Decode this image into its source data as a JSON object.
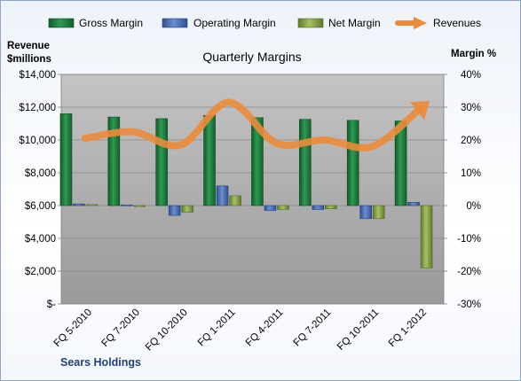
{
  "chart_data": {
    "type": "bar",
    "title": "Quarterly Margins",
    "footer": "Sears Holdings",
    "categories": [
      "FQ 5-2010",
      "FQ 7-2010",
      "FQ 10-2010",
      "FQ 1-2011",
      "FQ 4-2011",
      "FQ 7-2011",
      "FQ 10-2011",
      "FQ 1-2012"
    ],
    "y_left": {
      "label_line1": "Revenue",
      "label_line2": "$millions",
      "lim": [
        0,
        14000
      ],
      "ticks": [
        0,
        2000,
        4000,
        6000,
        8000,
        10000,
        12000,
        14000
      ],
      "tick_labels": [
        "$-",
        "$2,000",
        "$4,000",
        "$6,000",
        "$8,000",
        "$10,000",
        "$12,000",
        "$14,000"
      ]
    },
    "y_right": {
      "label": "Margin %",
      "lim": [
        -30,
        40
      ],
      "ticks": [
        -30,
        -20,
        -10,
        0,
        10,
        20,
        30,
        40
      ],
      "tick_labels": [
        "-30%",
        "-20%",
        "-10%",
        "0%",
        "10%",
        "20%",
        "30%",
        "40%"
      ]
    },
    "series": [
      {
        "name": "Gross Margin",
        "kind": "bar",
        "axis": "right",
        "color": "#1f7a3c",
        "values": [
          28,
          27,
          26.5,
          27.5,
          26.8,
          26.3,
          26,
          25.8
        ]
      },
      {
        "name": "Operating Margin",
        "kind": "bar",
        "axis": "right",
        "color": "#4a6fb5",
        "values": [
          0.5,
          0.2,
          -3,
          6,
          -1.5,
          -1.2,
          -4,
          1
        ]
      },
      {
        "name": "Net Margin",
        "kind": "bar",
        "axis": "right",
        "color": "#8caa4a",
        "values": [
          0.3,
          -0.3,
          -2,
          3,
          -1.2,
          -1,
          -4,
          -19
        ]
      },
      {
        "name": "Revenues",
        "kind": "line",
        "axis": "left",
        "color": "#ed8b3a",
        "values": [
          10100,
          10500,
          9700,
          12300,
          9800,
          10000,
          9600,
          11900
        ]
      }
    ],
    "grid": true,
    "legend_position": "top"
  }
}
